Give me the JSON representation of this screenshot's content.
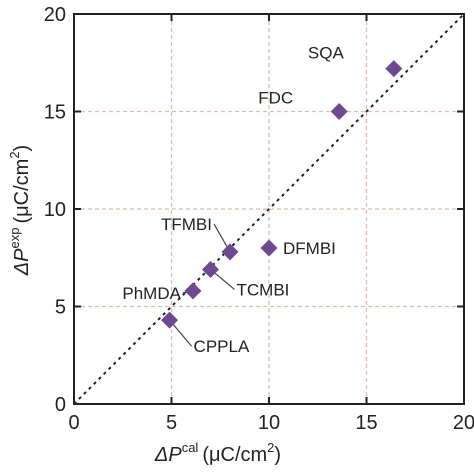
{
  "chart_data": {
    "type": "scatter",
    "title": "",
    "xlabel": {
      "symbol": "ΔP",
      "sup": "cal",
      "unit": "(μC/cm",
      "unit_sup": "2",
      "close": ")"
    },
    "ylabel": {
      "symbol": "ΔP",
      "sup": "exp",
      "unit": "(μC/cm",
      "unit_sup": "2",
      "close": ")"
    },
    "xlim": [
      0,
      20
    ],
    "ylim": [
      0,
      20
    ],
    "xticks": [
      "0",
      "5",
      "10",
      "15",
      "20"
    ],
    "yticks": [
      "0",
      "5",
      "10",
      "15",
      "20"
    ],
    "grid": true,
    "reference_line": {
      "x": [
        0,
        20
      ],
      "y": [
        0,
        20
      ],
      "style": "dotted"
    },
    "marker": {
      "shape": "diamond",
      "color": "#6d4a8f"
    },
    "points": [
      {
        "label": "SQA",
        "x": 16.4,
        "y": 17.2
      },
      {
        "label": "FDC",
        "x": 13.6,
        "y": 15.0
      },
      {
        "label": "DFMBI",
        "x": 10.0,
        "y": 8.0
      },
      {
        "label": "TFMBI",
        "x": 8.0,
        "y": 7.8
      },
      {
        "label": "TCMBI",
        "x": 7.0,
        "y": 6.9
      },
      {
        "label": "PhMDA",
        "x": 6.1,
        "y": 5.8
      },
      {
        "label": "CPPLA",
        "x": 4.9,
        "y": 4.3
      }
    ]
  }
}
